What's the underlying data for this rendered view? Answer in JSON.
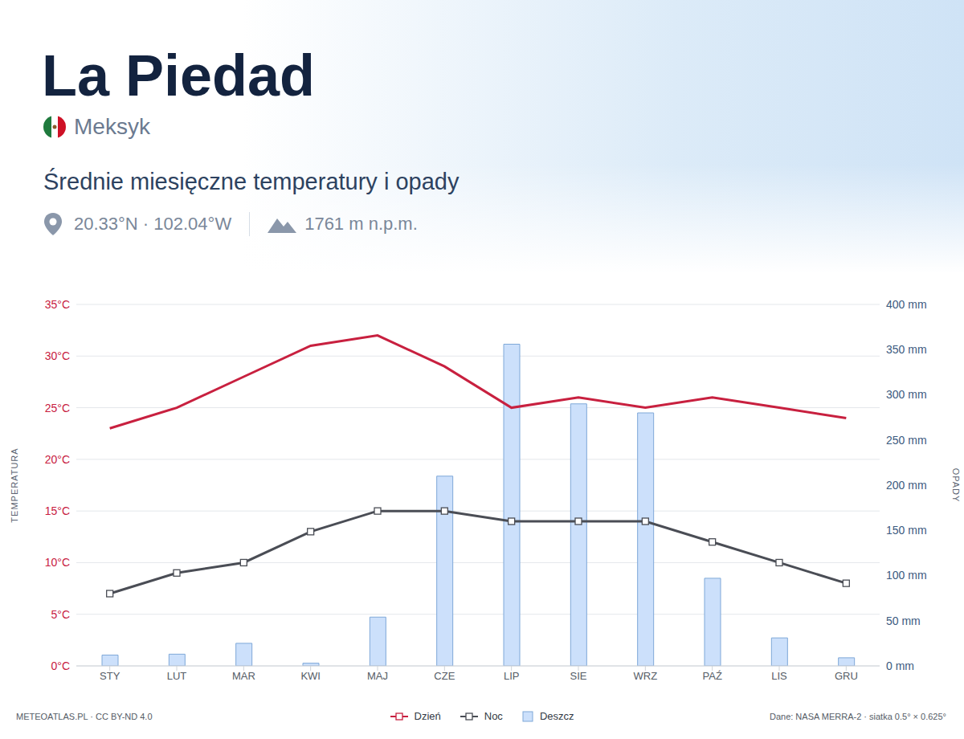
{
  "chart_data": {
    "type": "combo",
    "title": "La Piedad",
    "country": "Meksyk",
    "subtitle": "Średnie miesięczne temperatury i opady",
    "location": "20.33°N · 102.04°W",
    "elevation": "1761 m n.p.m.",
    "footer_left": "METEOATLAS.PL · CC BY-ND 4.0",
    "footer_right": "Dane: NASA MERRA-2 · siatka 0.5° × 0.625°",
    "categories": [
      "STY",
      "LUT",
      "MAR",
      "KWI",
      "MAJ",
      "CZE",
      "LIP",
      "SIE",
      "WRZ",
      "PAŹ",
      "LIS",
      "GRU"
    ],
    "series": [
      {
        "name": "Dzień",
        "type": "line",
        "color": "#c8203f",
        "marker": "none",
        "values": [
          23,
          25,
          28,
          31,
          32,
          29,
          25,
          26,
          25,
          26,
          25,
          24
        ]
      },
      {
        "name": "Noc",
        "type": "line",
        "color": "#4a4d55",
        "marker": "square",
        "values": [
          7,
          9,
          10,
          13,
          15,
          15,
          14,
          14,
          14,
          12,
          10,
          8
        ]
      },
      {
        "name": "Deszcz",
        "type": "bar",
        "axis": "y2",
        "color": "#cce0fb",
        "values": [
          12,
          13,
          25,
          3,
          54,
          210,
          356,
          290,
          280,
          97,
          31,
          9
        ]
      }
    ],
    "y_label": "TEMPERATURA",
    "y2_label": "OPADY",
    "ylim": [
      0,
      35
    ],
    "yticks": [
      {
        "value": 0,
        "label": "0°C"
      },
      {
        "value": 5,
        "label": "5°C"
      },
      {
        "value": 10,
        "label": "10°C"
      },
      {
        "value": 15,
        "label": "15°C"
      },
      {
        "value": 20,
        "label": "20°C"
      },
      {
        "value": 25,
        "label": "25°C"
      },
      {
        "value": 30,
        "label": "30°C"
      },
      {
        "value": 35,
        "label": "35°C"
      }
    ],
    "y2lim": [
      0,
      400
    ],
    "y2ticks": [
      {
        "value": 0,
        "label": "0 mm"
      },
      {
        "value": 50,
        "label": "50 mm"
      },
      {
        "value": 100,
        "label": "100 mm"
      },
      {
        "value": 150,
        "label": "150 mm"
      },
      {
        "value": 200,
        "label": "200 mm"
      },
      {
        "value": 250,
        "label": "250 mm"
      },
      {
        "value": 300,
        "label": "300 mm"
      },
      {
        "value": 350,
        "label": "350 mm"
      },
      {
        "value": 400,
        "label": "400 mm"
      }
    ],
    "grid": true,
    "legend": "bottom"
  }
}
